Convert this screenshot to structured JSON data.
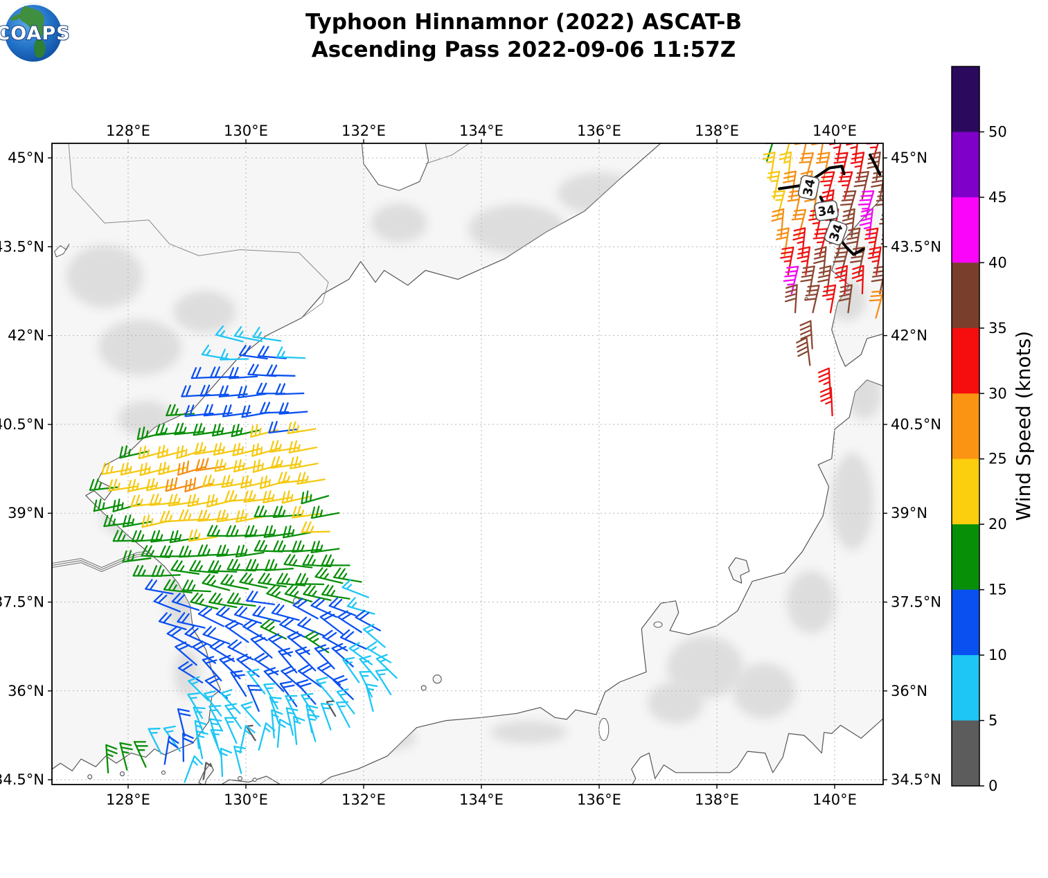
{
  "header": {
    "title_line1": "Typhoon Hinnamnor (2022) ASCAT-B",
    "title_line2": "Ascending Pass 2022-09-06 11:57Z",
    "logo_text": "COAPS"
  },
  "axes": {
    "lon_ticks": [
      {
        "label": "128°E",
        "lon": 128
      },
      {
        "label": "130°E",
        "lon": 130
      },
      {
        "label": "132°E",
        "lon": 132
      },
      {
        "label": "134°E",
        "lon": 134
      },
      {
        "label": "136°E",
        "lon": 136
      },
      {
        "label": "138°E",
        "lon": 138
      },
      {
        "label": "140°E",
        "lon": 140
      }
    ],
    "lat_ticks": [
      {
        "label": "45°N",
        "lat": 45
      },
      {
        "label": "43.5°N",
        "lat": 43.5
      },
      {
        "label": "42°N",
        "lat": 42
      },
      {
        "label": "40.5°N",
        "lat": 40.5
      },
      {
        "label": "39°N",
        "lat": 39
      },
      {
        "label": "37.5°N",
        "lat": 37.5
      },
      {
        "label": "36°N",
        "lat": 36
      },
      {
        "label": "34.5°N",
        "lat": 34.5
      }
    ]
  },
  "colorbar": {
    "label": "Wind Speed (knots)",
    "tick_values": [
      0,
      5,
      10,
      15,
      20,
      25,
      30,
      35,
      40,
      45,
      50
    ],
    "segments_top_to_bottom": [
      {
        "range": "50+",
        "color": "#2B0A5E"
      },
      {
        "range": "45-50",
        "color": "#7F00C8"
      },
      {
        "range": "40-45",
        "color": "#FA05FA"
      },
      {
        "range": "35-40",
        "color": "#7A3F2C"
      },
      {
        "range": "30-35",
        "color": "#F60D0D"
      },
      {
        "range": "25-30",
        "color": "#FB9412"
      },
      {
        "range": "20-25",
        "color": "#FBCE0E"
      },
      {
        "range": "15-20",
        "color": "#088F08"
      },
      {
        "range": "10-15",
        "color": "#0A50F0"
      },
      {
        "range": "5-10",
        "color": "#1EC6F5"
      },
      {
        "range": "0-5",
        "color": "#5C5C5C"
      }
    ]
  },
  "chart_data": {
    "type": "wind-barb-map",
    "title": "Typhoon Hinnamnor (2022) ASCAT-B Ascending Pass 2022-09-06 11:57Z",
    "lon_range": [
      126.71,
      140.82
    ],
    "lat_range": [
      34.42,
      45.25
    ],
    "grid": "dashed",
    "speed_bins_knots": {
      "k": "0-5",
      "c": "5-10",
      "b": "10-15",
      "g": "15-20",
      "y": "20-25",
      "o": "25-30",
      "r": "30-35",
      "n": "35-40",
      "m": "40-45"
    },
    "bin_colors": {
      "k": "#5C5C5C",
      "c": "#1EC6F5",
      "b": "#0A50F0",
      "g": "#088F08",
      "y": "#F5C913",
      "o": "#F58E14",
      "r": "#EE1010",
      "n": "#8A4631",
      "m": "#F507F5"
    },
    "swaths": [
      {
        "name": "east-sea-swath",
        "tick_offset": -115,
        "dlon": 0.32,
        "rows": [
          {
            "lat": 41.9,
            "lon0": 129.95,
            "codes": "ccc",
            "dir": 172,
            "jitter": 6,
            "tilt": 0.005
          },
          {
            "lat": 41.6,
            "lon0": 129.72,
            "codes": "ccbbc",
            "dir": 176,
            "jitter": 6,
            "tilt": 0.005
          },
          {
            "lat": 41.3,
            "lon0": 129.55,
            "codes": "bbbbb",
            "dir": 180,
            "jitter": 5,
            "tilt": 0.005
          },
          {
            "lat": 41.0,
            "lon0": 129.38,
            "codes": "bbbbbb",
            "dir": 184,
            "jitter": 5,
            "tilt": 0.005
          },
          {
            "lat": 40.68,
            "lon0": 129.12,
            "codes": "gbbbbbb",
            "dir": 187,
            "jitter": 5,
            "tilt": 0.006
          },
          {
            "lat": 40.36,
            "lon0": 128.62,
            "codes": "ggggggyby",
            "dir": 190,
            "jitter": 5,
            "tilt": 0.008
          },
          {
            "lat": 40.04,
            "lon0": 128.32,
            "codes": "gyyyyyyyyy",
            "dir": 192,
            "jitter": 5,
            "tilt": 0.008
          },
          {
            "lat": 39.74,
            "lon0": 128.02,
            "codes": "yyyyooyyyyy",
            "dir": 192,
            "jitter": 5,
            "tilt": 0.01
          },
          {
            "lat": 39.44,
            "lon0": 127.82,
            "codes": "gyyyooyyyyyy",
            "dir": 192,
            "jitter": 6,
            "tilt": 0.012
          },
          {
            "lat": 39.14,
            "lon0": 127.88,
            "codes": "ggyyyyyyyyyg",
            "dir": 190,
            "jitter": 6,
            "tilt": 0.014
          },
          {
            "lat": 38.84,
            "lon0": 128.06,
            "codes": "ggyyyyyyggyg",
            "dir": 188,
            "jitter": 6,
            "tilt": 0.015
          },
          {
            "lat": 38.54,
            "lon0": 128.22,
            "codes": "ggggygggggy",
            "dir": 185,
            "jitter": 6,
            "tilt": 0.015
          },
          {
            "lat": 38.24,
            "lon0": 128.38,
            "codes": "ggggggggggg",
            "dir": 182,
            "jitter": 7,
            "tilt": 0.016
          },
          {
            "lat": 37.94,
            "lon0": 128.56,
            "codes": "ggggggggggg",
            "dir": 178,
            "jitter": 7,
            "tilt": 0.018
          },
          {
            "lat": 37.64,
            "lon0": 128.76,
            "codes": "bgggggggggg",
            "dir": 173,
            "jitter": 8,
            "tilt": 0.02
          },
          {
            "lat": 37.34,
            "lon0": 128.88,
            "codes": "bbgggbggggc",
            "dir": 166,
            "jitter": 8,
            "tilt": 0.024
          },
          {
            "lat": 37.04,
            "lon0": 128.98,
            "codes": "bbbbbbbbbbc",
            "dir": 159,
            "jitter": 9,
            "tilt": 0.026
          },
          {
            "lat": 36.74,
            "lon0": 129.08,
            "codes": "bbbbbgbbbbb",
            "dir": 152,
            "jitter": 10,
            "tilt": 0.028
          },
          {
            "lat": 36.44,
            "lon0": 129.16,
            "codes": "bbbbbbbgbbc",
            "dir": 146,
            "jitter": 10,
            "tilt": 0.03
          },
          {
            "lat": 36.14,
            "lon0": 129.26,
            "codes": "bbbbbbbbbcc",
            "dir": 140,
            "jitter": 11,
            "tilt": 0.034
          },
          {
            "lat": 35.84,
            "lon0": 129.36,
            "codes": "cbbcbbbbccc",
            "dir": 133,
            "jitter": 12,
            "tilt": 0.038
          },
          {
            "lat": 35.54,
            "lon0": 129.26,
            "codes": "cccbcbbcbcc",
            "dir": 126,
            "jitter": 13,
            "tilt": 0.04
          },
          {
            "lat": 35.24,
            "lon0": 128.96,
            "codes": "bccccccckcc",
            "dir": 118,
            "jitter": 15,
            "tilt": 0.042
          },
          {
            "lat": 34.94,
            "lon0": 128.56,
            "codes": "ccccckccccc",
            "dir": 108,
            "jitter": 18,
            "tilt": 0.045
          },
          {
            "lat": 34.62,
            "lon0": 127.66,
            "codes": "gggbbccccccc",
            "dir": 96,
            "jitter": 22,
            "tilt": 0.048
          },
          {
            "lat": 34.46,
            "lon0": 128.96,
            "codes": "ckcc",
            "dir": 86,
            "jitter": 25,
            "tilt": 0.05
          }
        ]
      },
      {
        "name": "north-japan-swath",
        "tick_offset": 110,
        "dlon": 0.3,
        "rows": [
          {
            "lat": 44.95,
            "lon0": 138.85,
            "codes": "gyoorrro",
            "dir": 78,
            "jitter": 6,
            "tilt": 0
          },
          {
            "lat": 44.63,
            "lon0": 138.91,
            "codes": "yyoorrnr",
            "dir": 78,
            "jitter": 6,
            "tilt": 0
          },
          {
            "lat": 44.31,
            "lon0": 138.97,
            "codes": "yoorrnnr",
            "dir": 79,
            "jitter": 6,
            "tilt": 0
          },
          {
            "lat": 43.99,
            "lon0": 139.03,
            "codes": "yoornmnn",
            "dir": 79,
            "jitter": 6,
            "tilt": 0
          },
          {
            "lat": 43.67,
            "lon0": 139.09,
            "codes": "oorrnmnm",
            "dir": 80,
            "jitter": 6,
            "tilt": 0
          },
          {
            "lat": 43.35,
            "lon0": 139.15,
            "codes": "orrnnrnn",
            "dir": 80,
            "jitter": 6,
            "tilt": 0
          },
          {
            "lat": 43.03,
            "lon0": 139.21,
            "codes": "rrnnnrn",
            "dir": 81,
            "jitter": 6,
            "tilt": 0
          },
          {
            "lat": 42.71,
            "lon0": 139.27,
            "codes": "mnnrrnn",
            "dir": 82,
            "jitter": 6,
            "tilt": 0
          },
          {
            "lat": 42.39,
            "lon0": 139.33,
            "codes": "nnrn",
            "dir": 83,
            "jitter": 6,
            "tilt": 0
          }
        ]
      }
    ],
    "extra_barbs": [
      {
        "lon": 139.62,
        "lat": 41.78,
        "code": "n",
        "dir": 95,
        "tick_offset": 110
      },
      {
        "lon": 139.58,
        "lat": 41.5,
        "code": "n",
        "dir": 97,
        "tick_offset": 110
      },
      {
        "lon": 139.93,
        "lat": 40.98,
        "code": "r",
        "dir": 92,
        "tick_offset": 110
      },
      {
        "lon": 139.96,
        "lat": 40.65,
        "code": "r",
        "dir": 90,
        "tick_offset": 110
      },
      {
        "lon": 140.7,
        "lat": 42.3,
        "code": "o",
        "dir": 72,
        "tick_offset": 110
      }
    ],
    "contours": {
      "level_label": "34",
      "lines": [
        [
          [
            139.06,
            44.48
          ],
          [
            139.47,
            44.54
          ],
          [
            139.75,
            44.72
          ],
          [
            139.91,
            44.83
          ],
          [
            140.12,
            44.86
          ],
          [
            140.16,
            44.73
          ]
        ],
        [
          [
            139.76,
            44.34
          ],
          [
            139.9,
            44.05
          ],
          [
            139.94,
            43.93
          ],
          [
            140.08,
            43.64
          ],
          [
            140.2,
            43.49
          ],
          [
            140.32,
            43.37
          ],
          [
            140.49,
            43.46
          ]
        ],
        [
          [
            140.6,
            45.05
          ],
          [
            140.68,
            44.9
          ],
          [
            140.77,
            44.72
          ]
        ]
      ],
      "labels": [
        {
          "lon": 139.56,
          "lat": 44.5,
          "rot": -78
        },
        {
          "lon": 139.86,
          "lat": 44.11,
          "rot": -8
        },
        {
          "lon": 140.02,
          "lat": 43.74,
          "rot": -70
        }
      ]
    }
  }
}
